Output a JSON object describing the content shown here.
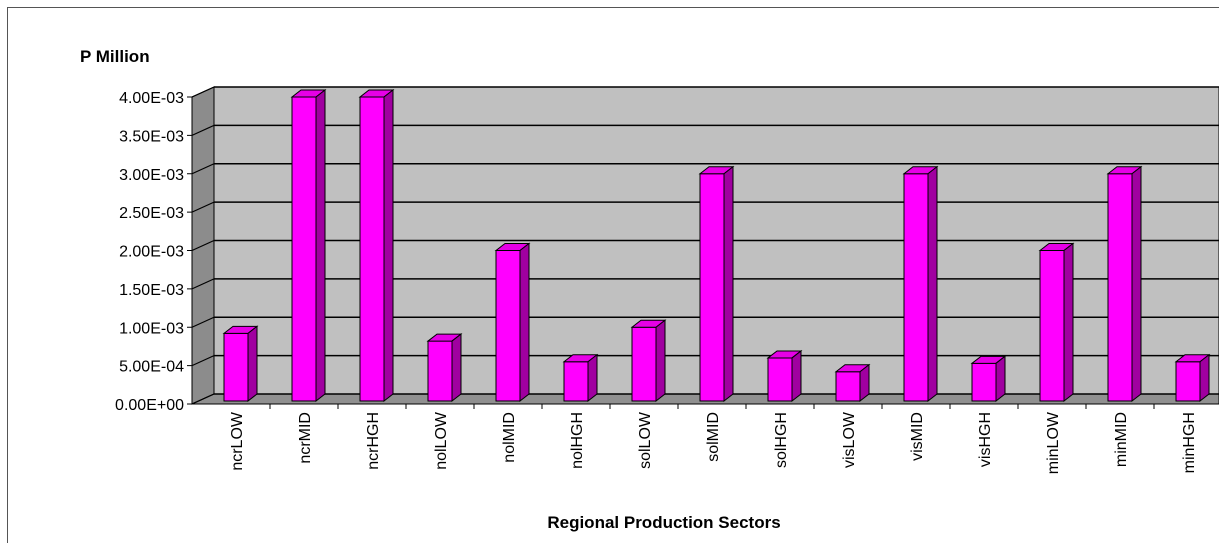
{
  "chart_data": {
    "type": "bar",
    "ylabel": "P Million",
    "xlabel": "Regional Production Sectors",
    "categories": [
      "ncrLOW",
      "ncrMID",
      "ncrHGH",
      "nolLOW",
      "nolMID",
      "nolHGH",
      "solLOW",
      "solMID",
      "solHGH",
      "visLOW",
      "visMID",
      "visHGH",
      "minLOW",
      "minMID",
      "minHGH"
    ],
    "values": [
      0.00092,
      0.004,
      0.004,
      0.00082,
      0.002,
      0.00055,
      0.001,
      0.003,
      0.0006,
      0.00042,
      0.003,
      0.00053,
      0.002,
      0.003,
      0.00055
    ],
    "ylim": [
      0,
      0.004
    ],
    "yticks": [
      "0.00E+00",
      "5.00E-04",
      "1.00E-03",
      "1.50E-03",
      "2.00E-03",
      "2.50E-03",
      "3.00E-03",
      "3.50E-03",
      "4.00E-03"
    ],
    "grid": true,
    "style": "3d-column",
    "colors": {
      "bar_front": "#ff00ff",
      "bar_top": "#e600e6",
      "bar_side": "#a000a0",
      "back_wall": "#c0c0c0",
      "floor": "#909090",
      "left_wall": "#8c8c8c"
    }
  }
}
